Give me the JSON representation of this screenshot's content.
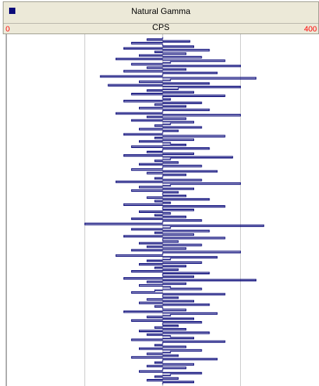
{
  "chart_data": {
    "type": "line",
    "title": "Natural Gamma",
    "unit": "CPS",
    "xlim": [
      0,
      400
    ],
    "x_tick_labels": [
      "0",
      "400"
    ],
    "orientation": "vertical-log",
    "grid": true,
    "grid_x": [
      200
    ],
    "series": [
      {
        "color": "#0b0b7a",
        "x": [
          200,
          180,
          235,
          160,
          200,
          240,
          150,
          260,
          190,
          230,
          170,
          250,
          140,
          280,
          210,
          160,
          300,
          180,
          230,
          150,
          270,
          200,
          120,
          320,
          210,
          170,
          260,
          130,
          300,
          220,
          180,
          240,
          160,
          280,
          200,
          210,
          150,
          250,
          190,
          230,
          170,
          260,
          200,
          140,
          300,
          180,
          230,
          160,
          240,
          210,
          190,
          250,
          170,
          220,
          200,
          150,
          280,
          190,
          240,
          170,
          210,
          230,
          160,
          260,
          200,
          180,
          240,
          150,
          290,
          210,
          190,
          220,
          170,
          250,
          200,
          160,
          270,
          180,
          230,
          200,
          190,
          250,
          140,
          300,
          210,
          170,
          240,
          160,
          220,
          200,
          230,
          180,
          260,
          190,
          210,
          150,
          280,
          200,
          240,
          170,
          210,
          190,
          230,
          160,
          250,
          200,
          100,
          330,
          210,
          160,
          260,
          190,
          240,
          150,
          280,
          200,
          220,
          170,
          250,
          180,
          230,
          160,
          300,
          200,
          140,
          270,
          210,
          180,
          250,
          170,
          230,
          190,
          220,
          160,
          260,
          200,
          240,
          150,
          320,
          180,
          230,
          170,
          210,
          250,
          190,
          160,
          280,
          200,
          220,
          180,
          240,
          170,
          260,
          190,
          200,
          230,
          150,
          270,
          210,
          180,
          240,
          160,
          250,
          200,
          220,
          190,
          230,
          170,
          260,
          180,
          210,
          240,
          160,
          280,
          200,
          190,
          230,
          170,
          250,
          210,
          180,
          220,
          160,
          270,
          200,
          190,
          240,
          180,
          230,
          200,
          170,
          250,
          210,
          190,
          220,
          180,
          240,
          200
        ]
      }
    ]
  }
}
